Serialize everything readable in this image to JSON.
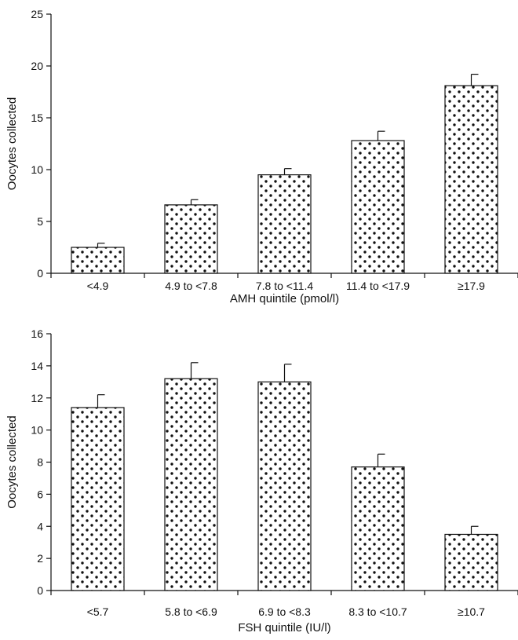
{
  "colors": {
    "ink": "#111111",
    "background": "#ffffff",
    "dot": "#111111"
  },
  "chart_data": [
    {
      "type": "bar",
      "pattern": "dotted",
      "categories": [
        "<4.9",
        "4.9 to <7.8",
        "7.8 to <11.4",
        "11.4 to <17.9",
        "≥17.9"
      ],
      "values": [
        2.5,
        6.6,
        9.5,
        12.8,
        18.1
      ],
      "error_upper": [
        0.4,
        0.5,
        0.6,
        0.9,
        1.1
      ],
      "title": "",
      "xlabel": "AMH quintile (pmol/l)",
      "ylabel": "Oocytes collected",
      "ylim": [
        0,
        25
      ],
      "yticks": [
        0,
        5,
        10,
        15,
        20,
        25
      ],
      "grid": false
    },
    {
      "type": "bar",
      "pattern": "dotted",
      "categories": [
        "<5.7",
        "5.8 to <6.9",
        "6.9 to <8.3",
        "8.3 to <10.7",
        "≥10.7"
      ],
      "values": [
        11.4,
        13.2,
        13.0,
        7.7,
        3.5
      ],
      "error_upper": [
        0.8,
        1.0,
        1.1,
        0.8,
        0.5
      ],
      "title": "",
      "xlabel": "FSH quintile (IU/l)",
      "ylabel": "Oocytes collected",
      "ylim": [
        0,
        16
      ],
      "yticks": [
        0,
        2,
        4,
        6,
        8,
        10,
        12,
        14,
        16
      ],
      "grid": false
    }
  ]
}
